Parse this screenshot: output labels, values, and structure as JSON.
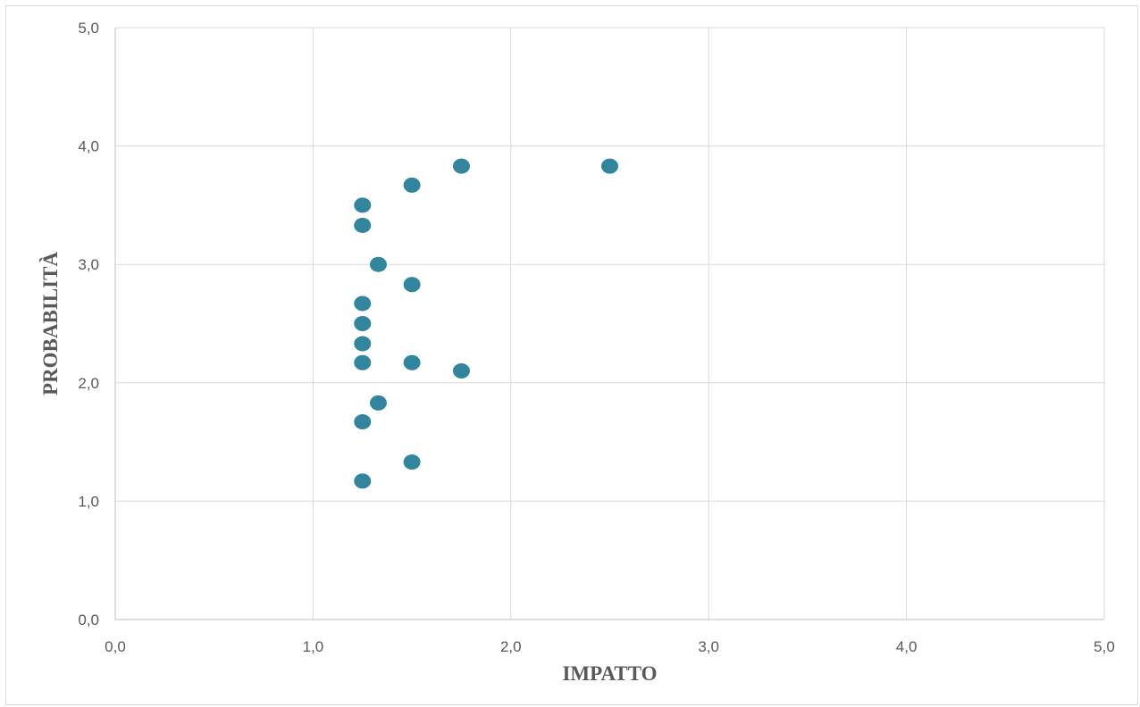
{
  "chart_data": {
    "type": "scatter",
    "title": "",
    "xlabel": "IMPATTO",
    "ylabel": "PROBABILITÀ",
    "xlim": [
      0,
      5
    ],
    "ylim": [
      0,
      5
    ],
    "x_ticks": [
      "0,0",
      "1,0",
      "2,0",
      "3,0",
      "4,0",
      "5,0"
    ],
    "y_ticks": [
      "0,0",
      "1,0",
      "2,0",
      "3,0",
      "4,0",
      "5,0"
    ],
    "grid": true,
    "legend": "none",
    "point_color": "#31859c",
    "series": [
      {
        "x": [
          1.75,
          2.5,
          1.5,
          1.25,
          1.25,
          1.33,
          1.5,
          1.25,
          1.25,
          1.25,
          1.25,
          1.5,
          1.75,
          1.33,
          1.25,
          1.5,
          1.25
        ],
        "y": [
          3.83,
          3.83,
          3.67,
          3.5,
          3.33,
          3.0,
          2.83,
          2.67,
          2.5,
          2.33,
          2.17,
          2.17,
          2.1,
          1.83,
          1.67,
          1.33,
          1.17
        ]
      }
    ]
  }
}
